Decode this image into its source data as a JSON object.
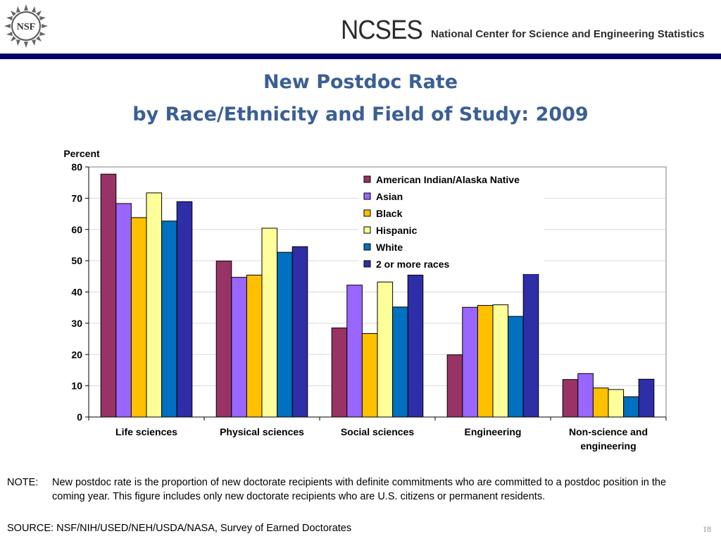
{
  "header": {
    "logo_text": "NSF",
    "org_acronym": "NCSES",
    "org_name": "National Center for Science and Engineering Statistics"
  },
  "title": {
    "line1": "New Postdoc Rate",
    "line2": "by Race/Ethnicity and Field of Study: 2009"
  },
  "colors": {
    "title": "#3b5f94",
    "header_rule": "#000066"
  },
  "chart_data": {
    "type": "bar",
    "ylabel": "Percent",
    "ylim": [
      0,
      80
    ],
    "yticks": [
      0,
      10,
      20,
      30,
      40,
      50,
      60,
      70,
      80
    ],
    "grid": true,
    "legend_position": "top-right",
    "categories": [
      "Life sciences",
      "Physical sciences",
      "Social sciences",
      "Engineering",
      "Non-science and engineering"
    ],
    "category_label_lines": [
      [
        "Life sciences"
      ],
      [
        "Physical sciences"
      ],
      [
        "Social sciences"
      ],
      [
        "Engineering"
      ],
      [
        "Non-science and",
        "engineering"
      ]
    ],
    "series": [
      {
        "name": "American Indian/Alaska Native",
        "color": "#993366",
        "values": [
          77.7,
          49.9,
          28.5,
          19.9,
          12.0
        ]
      },
      {
        "name": "Asian",
        "color": "#9966ff",
        "values": [
          68.3,
          44.7,
          42.2,
          35.1,
          13.9
        ]
      },
      {
        "name": "Black",
        "color": "#ffc000",
        "values": [
          63.8,
          45.4,
          26.7,
          35.7,
          9.3
        ]
      },
      {
        "name": "Hispanic",
        "color": "#ffff99",
        "values": [
          71.7,
          60.4,
          43.2,
          35.9,
          8.8
        ]
      },
      {
        "name": "White",
        "color": "#0070c0",
        "values": [
          62.7,
          52.7,
          35.2,
          32.2,
          6.5
        ]
      },
      {
        "name": "2 or more races",
        "color": "#2e2ea8",
        "values": [
          68.9,
          54.5,
          45.4,
          46.2,
          12.1
        ]
      }
    ]
  },
  "note": {
    "label": "NOTE:",
    "text": "New postdoc rate is the proportion of new doctorate recipients with definite commitments who are committed to a postdoc position in the coming year.  This figure includes only new doctorate recipients who are U.S. citizens or permanent residents."
  },
  "source": "SOURCE:  NSF/NIH/USED/NEH/USDA/NASA, Survey of Earned Doctorates",
  "page_number": "18"
}
